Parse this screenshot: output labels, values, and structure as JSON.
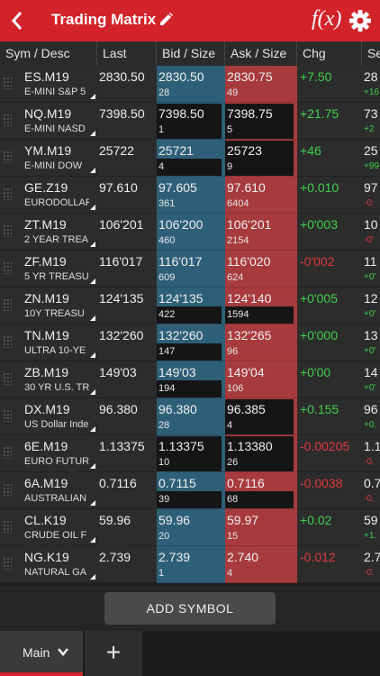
{
  "header": {
    "title": "Trading Matrix",
    "fx_label": "f(x)"
  },
  "columns": [
    "Sym / Desc",
    "Last",
    "Bid / Size",
    "Ask / Size",
    "Chg",
    "Se"
  ],
  "rows": [
    {
      "sym": "ES.M19",
      "desc": "E-MINI S&P 5",
      "last": "2830.50",
      "bid": "2830.50",
      "bid_size": "28",
      "ask": "2830.75",
      "ask_size": "49",
      "chg": "+7.50",
      "chg_dir": "pos",
      "set": "28",
      "set_chg": "+16",
      "set_dir": "pos",
      "bid_hl": false,
      "ask_hl": false
    },
    {
      "sym": "NQ.M19",
      "desc": "E-MINI NASD",
      "last": "7398.50",
      "bid": "7398.50",
      "bid_size": "1",
      "ask": "7398.75",
      "ask_size": "5",
      "chg": "+21.75",
      "chg_dir": "pos",
      "set": "73",
      "set_chg": "+2",
      "set_dir": "pos",
      "bid_hl": "full",
      "ask_hl": "full"
    },
    {
      "sym": "YM.M19",
      "desc": "E-MINI DOW",
      "last": "25722",
      "bid": "25721",
      "bid_size": "4",
      "ask": "25723",
      "ask_size": "9",
      "chg": "+46",
      "chg_dir": "pos",
      "set": "25",
      "set_chg": "+99",
      "set_dir": "pos",
      "bid_hl": "size",
      "ask_hl": "full"
    },
    {
      "sym": "GE.Z19",
      "desc": "EURODOLLAR",
      "last": "97.610",
      "bid": "97.605",
      "bid_size": "361",
      "ask": "97.610",
      "ask_size": "6404",
      "chg": "+0.010",
      "chg_dir": "pos",
      "set": "97",
      "set_chg": "-0.",
      "set_dir": "neg",
      "bid_hl": false,
      "ask_hl": false
    },
    {
      "sym": "ZT.M19",
      "desc": "2 YEAR TREA",
      "last": "106'201",
      "bid": "106'200",
      "bid_size": "460",
      "ask": "106'201",
      "ask_size": "2154",
      "chg": "+0'003",
      "chg_dir": "pos",
      "set": "10",
      "set_chg": "-0'",
      "set_dir": "neg",
      "bid_hl": false,
      "ask_hl": false
    },
    {
      "sym": "ZF.M19",
      "desc": "5 YR TREASU",
      "last": "116'017",
      "bid": "116'017",
      "bid_size": "609",
      "ask": "116'020",
      "ask_size": "624",
      "chg": "-0'002",
      "chg_dir": "neg",
      "set": "11",
      "set_chg": "+0'",
      "set_dir": "pos",
      "bid_hl": false,
      "ask_hl": false
    },
    {
      "sym": "ZN.M19",
      "desc": "10Y TREASU",
      "last": "124'135",
      "bid": "124'135",
      "bid_size": "422",
      "ask": "124'140",
      "ask_size": "1594",
      "chg": "+0'005",
      "chg_dir": "pos",
      "set": "12",
      "set_chg": "+0'",
      "set_dir": "pos",
      "bid_hl": "size",
      "ask_hl": "size"
    },
    {
      "sym": "TN.M19",
      "desc": "ULTRA 10-YE",
      "last": "132'260",
      "bid": "132'260",
      "bid_size": "147",
      "ask": "132'265",
      "ask_size": "96",
      "chg": "+0'000",
      "chg_dir": "pos",
      "set": "13",
      "set_chg": "+0'",
      "set_dir": "pos",
      "bid_hl": "size",
      "ask_hl": false
    },
    {
      "sym": "ZB.M19",
      "desc": "30 YR U.S. TR",
      "last": "149'03",
      "bid": "149'03",
      "bid_size": "194",
      "ask": "149'04",
      "ask_size": "106",
      "chg": "+0'00",
      "chg_dir": "pos",
      "set": "14",
      "set_chg": "+0'",
      "set_dir": "pos",
      "bid_hl": "size",
      "ask_hl": false
    },
    {
      "sym": "DX.M19",
      "desc": "US Dollar Inde",
      "last": "96.380",
      "bid": "96.380",
      "bid_size": "28",
      "ask": "96.385",
      "ask_size": "4",
      "chg": "+0.155",
      "chg_dir": "pos",
      "set": "96",
      "set_chg": "+0.",
      "set_dir": "pos",
      "bid_hl": false,
      "ask_hl": "full"
    },
    {
      "sym": "6E.M19",
      "desc": "EURO FUTUR",
      "last": "1.13375",
      "bid": "1.13375",
      "bid_size": "10",
      "ask": "1.13380",
      "ask_size": "26",
      "chg": "-0.00205",
      "chg_dir": "neg",
      "set": "1.1",
      "set_chg": "-0.",
      "set_dir": "neg",
      "bid_hl": "full",
      "ask_hl": "full"
    },
    {
      "sym": "6A.M19",
      "desc": "AUSTRALIAN",
      "last": "0.7116",
      "bid": "0.7115",
      "bid_size": "39",
      "ask": "0.7116",
      "ask_size": "68",
      "chg": "-0.0038",
      "chg_dir": "neg",
      "set": "0.7",
      "set_chg": "-0.",
      "set_dir": "neg",
      "bid_hl": "size",
      "ask_hl": "size"
    },
    {
      "sym": "CL.K19",
      "desc": "CRUDE OIL F",
      "last": "59.96",
      "bid": "59.96",
      "bid_size": "20",
      "ask": "59.97",
      "ask_size": "15",
      "chg": "+0.02",
      "chg_dir": "pos",
      "set": "59",
      "set_chg": "+1.",
      "set_dir": "pos",
      "bid_hl": false,
      "ask_hl": false
    },
    {
      "sym": "NG.K19",
      "desc": "NATURAL GA",
      "last": "2.739",
      "bid": "2.739",
      "bid_size": "1",
      "ask": "2.740",
      "ask_size": "4",
      "chg": "-0.012",
      "chg_dir": "neg",
      "set": "2.7",
      "set_chg": "-0.",
      "set_dir": "neg",
      "bid_hl": false,
      "ask_hl": false
    }
  ],
  "footer": {
    "add_symbol_label": "ADD SYMBOL",
    "main_tab_label": "Main",
    "add_tab_label": "+"
  }
}
